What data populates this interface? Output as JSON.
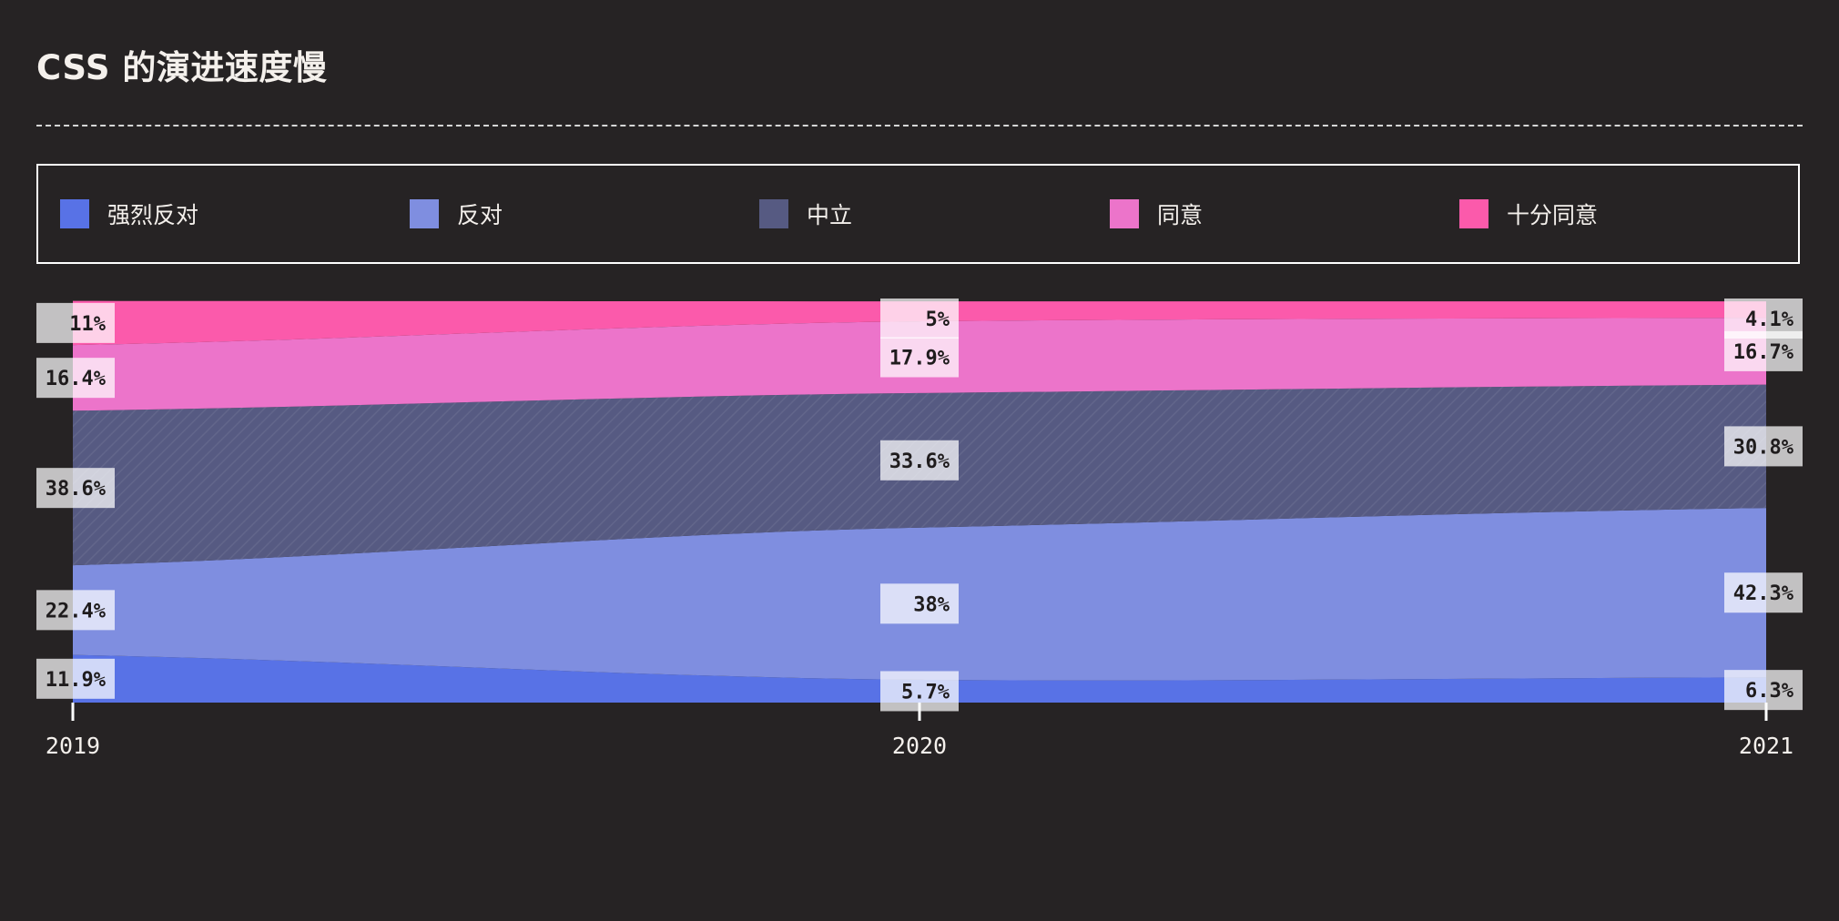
{
  "title": "CSS 的演进速度慢",
  "legend": [
    {
      "label": "强烈反对",
      "color": "#5872e6"
    },
    {
      "label": "反对",
      "color": "#7f8ee0"
    },
    {
      "label": "中立",
      "color": "#565a82"
    },
    {
      "label": "同意",
      "color": "#ec74ca"
    },
    {
      "label": "十分同意",
      "color": "#fb5aab"
    }
  ],
  "chart_data": {
    "type": "area",
    "stacked": "percent",
    "x": [
      "2019",
      "2020",
      "2021"
    ],
    "series": [
      {
        "name": "强烈反对",
        "color": "#5872e6",
        "values": [
          11.9,
          5.7,
          6.3
        ],
        "labels": [
          "11.9%",
          "5.7%",
          "6.3%"
        ]
      },
      {
        "name": "反对",
        "color": "#7f8ee0",
        "values": [
          22.4,
          38,
          42.3
        ],
        "labels": [
          "22.4%",
          "38%",
          "42.3%"
        ]
      },
      {
        "name": "中立",
        "color": "#565a82",
        "values": [
          38.6,
          33.6,
          30.8
        ],
        "labels": [
          "38.6%",
          "33.6%",
          "30.8%"
        ]
      },
      {
        "name": "同意",
        "color": "#ec74ca",
        "values": [
          16.4,
          17.9,
          16.7
        ],
        "labels": [
          "16.4%",
          "17.9%",
          "16.7%"
        ]
      },
      {
        "name": "十分同意",
        "color": "#fb5aab",
        "values": [
          11,
          5,
          4.1
        ],
        "labels": [
          "11%",
          "5%",
          "4.1%"
        ]
      }
    ],
    "ylim": [
      0,
      100
    ],
    "grid": false,
    "legend_position": "top"
  }
}
